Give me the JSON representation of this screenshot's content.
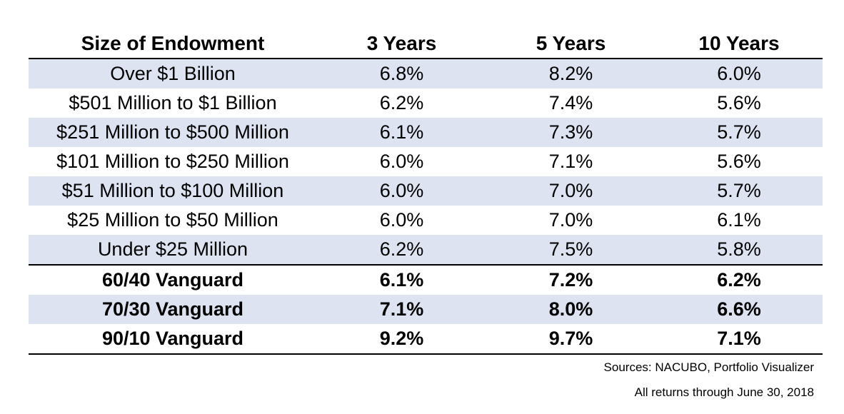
{
  "chart_data": {
    "type": "table",
    "columns": [
      "Size of Endowment",
      "3 Years",
      "5 Years",
      "10 Years"
    ],
    "rows": [
      {
        "label": "Over $1 Billion",
        "values": [
          "6.8%",
          "8.2%",
          "6.0%"
        ],
        "bold": false,
        "shaded": true
      },
      {
        "label": "$501 Million to $1 Billion",
        "values": [
          "6.2%",
          "7.4%",
          "5.6%"
        ],
        "bold": false,
        "shaded": false
      },
      {
        "label": "$251 Million to $500 Million",
        "values": [
          "6.1%",
          "7.3%",
          "5.7%"
        ],
        "bold": false,
        "shaded": true
      },
      {
        "label": "$101 Million to $250 Million",
        "values": [
          "6.0%",
          "7.1%",
          "5.6%"
        ],
        "bold": false,
        "shaded": false
      },
      {
        "label": "$51 Million to $100 Million",
        "values": [
          "6.0%",
          "7.0%",
          "5.7%"
        ],
        "bold": false,
        "shaded": true
      },
      {
        "label": "$25 Million to $50 Million",
        "values": [
          "6.0%",
          "7.0%",
          "6.1%"
        ],
        "bold": false,
        "shaded": false
      },
      {
        "label": "Under $25 Million",
        "values": [
          "6.2%",
          "7.5%",
          "5.8%"
        ],
        "bold": false,
        "shaded": true
      },
      {
        "label": "60/40 Vanguard",
        "values": [
          "6.1%",
          "7.2%",
          "6.2%"
        ],
        "bold": true,
        "shaded": false
      },
      {
        "label": "70/30 Vanguard",
        "values": [
          "7.1%",
          "8.0%",
          "6.6%"
        ],
        "bold": true,
        "shaded": true
      },
      {
        "label": "90/10 Vanguard",
        "values": [
          "9.2%",
          "9.7%",
          "7.1%"
        ],
        "bold": true,
        "shaded": false
      }
    ],
    "shade_color": "#dde3f1"
  },
  "footer": {
    "sources": "Sources: NACUBO, Portfolio Visualizer",
    "through": "All returns through June 30, 2018"
  }
}
